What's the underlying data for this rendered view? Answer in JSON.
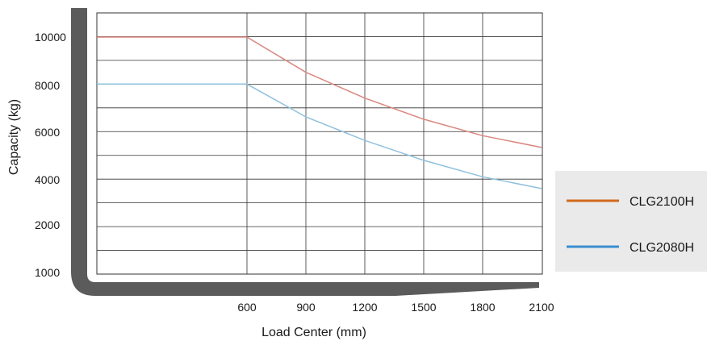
{
  "chart_data": {
    "type": "line",
    "title": "",
    "xlabel": "Load Center (mm)",
    "ylabel": "Capacity (kg)",
    "x_ticks": [
      "600",
      "900",
      "1200",
      "1500",
      "1800",
      "2100"
    ],
    "y_ticks": [
      "1000",
      "2000",
      "4000",
      "6000",
      "8000",
      "10000"
    ],
    "grid": true,
    "legend_position": "right",
    "series": [
      {
        "name": "CLG2100H",
        "color": "#d2691e",
        "line_color": "#d9877f",
        "points": [
          [
            0,
            10000
          ],
          [
            600,
            10000
          ],
          [
            900,
            8500
          ],
          [
            1200,
            7400
          ],
          [
            1500,
            6500
          ],
          [
            1800,
            5800
          ],
          [
            2100,
            5300
          ]
        ]
      },
      {
        "name": "CLG2080H",
        "color": "#3a8fd0",
        "line_color": "#8fc1dc",
        "points": [
          [
            0,
            8000
          ],
          [
            600,
            8000
          ],
          [
            900,
            6600
          ],
          [
            1200,
            5600
          ],
          [
            1500,
            4750
          ],
          [
            1800,
            4050
          ],
          [
            2100,
            3550
          ]
        ]
      }
    ]
  }
}
